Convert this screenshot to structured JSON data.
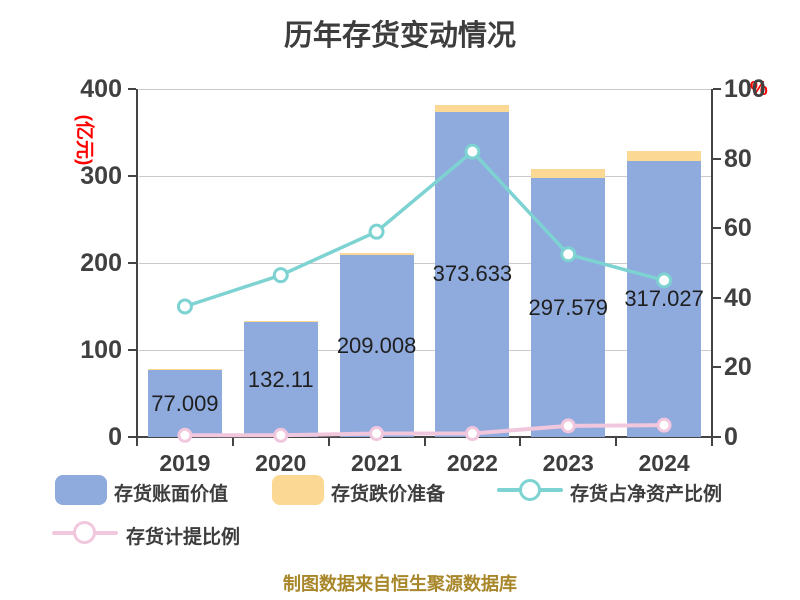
{
  "title": "历年存货变动情况",
  "footer": "制图数据来自恒生聚源数据库",
  "left_axis": {
    "unit": "(亿元)",
    "tick_values": [
      0,
      100,
      200,
      300,
      400
    ]
  },
  "right_axis": {
    "unit": "%",
    "tick_values": [
      0,
      20,
      40,
      60,
      80,
      100
    ]
  },
  "colors": {
    "bar_book_value": "#8FAADC",
    "bar_provision": "#FBD893",
    "line_net_asset_ratio": "#7DD2D2",
    "line_provision_ratio": "#F1C7DE",
    "axis_text": "#404040",
    "unit_text": "#FF0000",
    "footer_text": "#A8872B",
    "gridline": "#C9C9C9"
  },
  "legend": {
    "items": [
      {
        "label": "存货账面价值",
        "swatch": "bar",
        "color": "#8FAADC"
      },
      {
        "label": "存货跌价准备",
        "swatch": "bar",
        "color": "#FBD893"
      },
      {
        "label": "存货占净资产比例",
        "swatch": "line-marker",
        "color": "#7DD2D2"
      },
      {
        "label": "存货计提比例",
        "swatch": "line-marker",
        "color": "#F1C7DE"
      }
    ]
  },
  "chart_data": {
    "type": "bar",
    "subtype": "stacked-bars-with-overlay-lines",
    "title": "历年存货变动情况",
    "categories": [
      "2019",
      "2020",
      "2021",
      "2022",
      "2023",
      "2024"
    ],
    "left_ylim": [
      0,
      400
    ],
    "right_ylim": [
      0,
      100
    ],
    "grid": true,
    "legend_position": "bottom",
    "series": [
      {
        "name": "存货账面价值",
        "type": "bar",
        "axis": "left",
        "color": "#8FAADC",
        "values": [
          77.009,
          132.11,
          209.008,
          373.633,
          297.579,
          317.027
        ],
        "labels": [
          "77.009",
          "132.11",
          "209.008",
          "373.633",
          "297.579",
          "317.027"
        ]
      },
      {
        "name": "存货跌价准备",
        "type": "bar-stacked-on-top",
        "axis": "left",
        "color": "#FBD893",
        "values": [
          1.2,
          1.6,
          2.4,
          8.0,
          10.4,
          11.7
        ],
        "estimated": true
      },
      {
        "name": "存货占净资产比例",
        "type": "line",
        "axis": "right",
        "color": "#7DD2D2",
        "marker": "white-circle",
        "values": [
          37.5,
          46.5,
          59.0,
          82.0,
          52.5,
          45.0
        ],
        "estimated": true
      },
      {
        "name": "存货计提比例",
        "type": "line",
        "axis": "right",
        "color": "#F1C7DE",
        "marker": "white-circle",
        "values": [
          0.5,
          0.5,
          1.0,
          1.0,
          3.2,
          3.4
        ],
        "estimated": true
      }
    ]
  }
}
